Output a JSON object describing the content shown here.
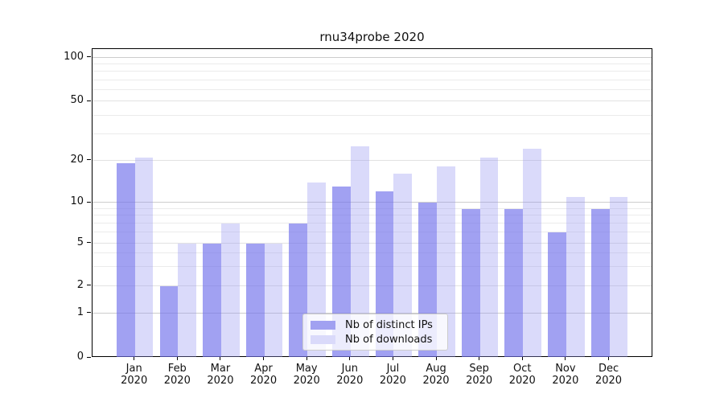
{
  "title": "rnu34probe 2020",
  "colors": {
    "distinct_ips": "#a1a1f1",
    "downloads": "#dadafa",
    "grid_major": "#cdcdcd",
    "grid_labeled": "#e2e2e2",
    "grid_minor": "#ebebeb",
    "axis": "#000000"
  },
  "legend": {
    "items": [
      {
        "label": "Nb of distinct IPs"
      },
      {
        "label": "Nb of downloads"
      }
    ]
  },
  "y_axis": {
    "tick_labels": [
      "100",
      "50",
      "20",
      "10",
      "5",
      "2",
      "1",
      "0"
    ]
  },
  "x_axis": {
    "year": "2020",
    "months": [
      "Jan",
      "Feb",
      "Mar",
      "Apr",
      "May",
      "Jun",
      "Jul",
      "Aug",
      "Sep",
      "Oct",
      "Nov",
      "Dec"
    ]
  },
  "chart_data": {
    "type": "bar",
    "title": "rnu34probe 2020",
    "categories": [
      "Jan 2020",
      "Feb 2020",
      "Mar 2020",
      "Apr 2020",
      "May 2020",
      "Jun 2020",
      "Jul 2020",
      "Aug 2020",
      "Sep 2020",
      "Oct 2020",
      "Nov 2020",
      "Dec 2020"
    ],
    "series": [
      {
        "name": "Nb of distinct IPs",
        "color": "#a1a1f1",
        "values": [
          19,
          2,
          5,
          5,
          7,
          13,
          12,
          10,
          9,
          9,
          6,
          9
        ]
      },
      {
        "name": "Nb of downloads",
        "color": "#dadafa",
        "values": [
          21,
          5,
          7,
          5,
          14,
          25,
          16,
          18,
          21,
          24,
          11,
          11
        ]
      }
    ],
    "yscale": "log",
    "yticks": [
      0,
      1,
      2,
      5,
      10,
      20,
      50,
      100
    ],
    "minor_gridline_values": [
      3,
      4,
      6,
      7,
      8,
      9,
      30,
      40,
      60,
      70,
      80,
      90
    ],
    "ylim": [
      0,
      100
    ],
    "grid": true,
    "legend_position": "lower center"
  }
}
